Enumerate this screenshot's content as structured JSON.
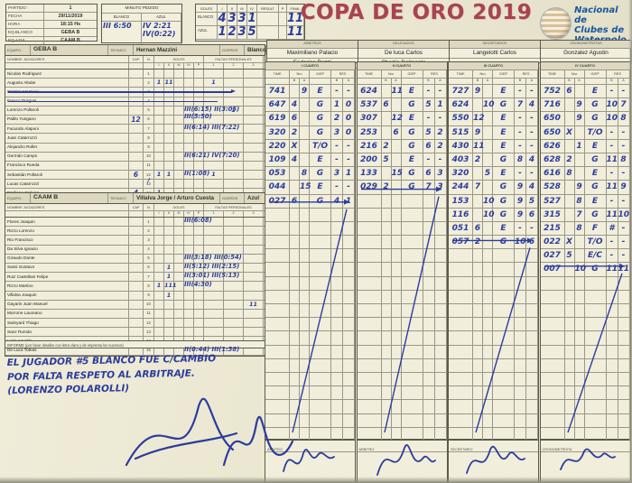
{
  "header": {
    "info": {
      "rows": [
        [
          "PARTIDO :",
          "1"
        ],
        [
          "FECHA",
          "29/11/2019"
        ],
        [
          "HORA",
          "18:15 Hs"
        ],
        [
          "EQ.BLANCO",
          "GEBA B"
        ],
        [
          "EQ.AZUL",
          "CAAM B"
        ]
      ]
    },
    "minuto_pedido": {
      "title": "MINUTO PEDIDO",
      "cols": [
        "BLANCO",
        "AZUL"
      ],
      "blanco_entry": "III 6:50",
      "azul_entry1": "IV 2:21",
      "azul_entry2": "IV(0:22)"
    },
    "goles_box": {
      "title": "GOLES",
      "cols": [
        "I",
        "II",
        "III",
        "IV",
        "RESULT",
        "P",
        "FINAL"
      ],
      "rows": [
        {
          "label": "BLANCO",
          "vals": [
            "4",
            "3",
            "3",
            "1",
            "",
            "",
            "11"
          ]
        },
        {
          "label": "AZUL",
          "vals": [
            "1",
            "2",
            "3",
            "5",
            "",
            "",
            "11"
          ]
        }
      ]
    },
    "title": "COPA DE ORO 2019",
    "logo_lines": [
      "Nacional de",
      "Clubes de",
      "Waterpolo"
    ]
  },
  "officials": [
    {
      "role": "ARBITROS",
      "names": [
        "Maximiliano Palacio",
        "Federico Pozzi"
      ]
    },
    {
      "role": "DELEGADOS",
      "names": [
        "De luca Carlos",
        "Charlie Delmonte"
      ]
    },
    {
      "role": "SECRETARIOS",
      "names": [
        "Langelotti Carlos",
        ""
      ]
    },
    {
      "role": "CRONOMETRISTAS",
      "names": [
        "Gonzalez Agustin",
        ""
      ]
    }
  ],
  "teams_common": {
    "equipo_label": "EQUIPO :",
    "tecnico_label": "TECNICO",
    "gorros_label": "GORROS",
    "name_col": "NOMBRE JUGADORES",
    "cap_col": "CAP",
    "n_col": "N",
    "goles_col": "GOLES",
    "goles_sub": [
      "I",
      "II",
      "III",
      "IV",
      "P"
    ],
    "faltas_col": "FALTAS PERSONALES",
    "faltas_sub": [
      "1",
      "2",
      "3"
    ]
  },
  "team_white": {
    "equipo": "GEBA B",
    "tecnico": "Hernan Mazzini",
    "gorros": "Blanco",
    "players": [
      {
        "n": "1",
        "name": "Nicolas Rodriguez"
      },
      {
        "n": "2",
        "name": "Augusto Altube",
        "g": [
          "1",
          "11",
          "",
          "",
          ""
        ],
        "f": [
          "1",
          "",
          ""
        ]
      },
      {
        "n": "3",
        "name": "Cristian Mazzoni",
        "crossed": "arrow"
      },
      {
        "n": "4",
        "name": "Franco Dragoni",
        "crossed": "plain"
      },
      {
        "n": "5",
        "name": "Lorenzo Pollaroli",
        "f": [
          "",
          "1",
          ""
        ],
        "anno": "III(6:15) II(3:05) III(5:50)"
      },
      {
        "n": "6",
        "name": "Pablo Yungano",
        "cap": "12"
      },
      {
        "n": "7",
        "name": "Facundo Alaponi",
        "anno": "II(6:14) III(7:22)"
      },
      {
        "n": "8",
        "name": "Juan Catarrozzi"
      },
      {
        "n": "9",
        "name": "Alejandro Roller"
      },
      {
        "n": "10",
        "name": "Germán Camps",
        "anno": "II(6:21) IV(7:20)"
      },
      {
        "n": "11",
        "name": "Francisco Rueda"
      },
      {
        "n": "12",
        "name": "Sebastián Pollaroli",
        "cap": "6",
        "nm": "/",
        "g": [
          "1",
          "1",
          "",
          "",
          ""
        ],
        "f": [
          "1",
          "",
          ""
        ],
        "anno": "II(1:08)"
      },
      {
        "n": "13",
        "name": "Lucas Catarrozzi"
      },
      {
        "n": "14",
        "name": "Emiliano Stelung",
        "cap": "4",
        "nm": "/",
        "g": [
          "1",
          "",
          "",
          "",
          ""
        ]
      },
      {
        "n": "15",
        "name": "Facundo Scime",
        "cap": "3",
        "nm": "/"
      }
    ]
  },
  "team_blue": {
    "equipo": "CAAM B",
    "tecnico": "Villalva Jorge / Arturo Cuesta",
    "gorros": "Azul",
    "players": [
      {
        "n": "1",
        "name": "Flores Joaquin",
        "anno": "III(6:08)"
      },
      {
        "n": "2",
        "name": "Rizzo Lorenzo"
      },
      {
        "n": "3",
        "name": "Rio Francisco"
      },
      {
        "n": "4",
        "name": "Da Silva Ignacio"
      },
      {
        "n": "5",
        "name": "Giraudo Dante",
        "anno": "III(3:18) III(0:54)"
      },
      {
        "n": "6",
        "name": "Sassi Gustavo",
        "g": [
          "",
          "1",
          "",
          "",
          ""
        ],
        "anno": "II(5:12) III(2:15)"
      },
      {
        "n": "7",
        "name": "Ruiz Castellani Felipe",
        "g": [
          "",
          "1",
          "",
          "",
          ""
        ],
        "anno": "II(3:01) III(5:13)"
      },
      {
        "n": "8",
        "name": "Rizzo Martino",
        "g": [
          "1",
          "111",
          "",
          "",
          ""
        ],
        "anno": "III(4:30)"
      },
      {
        "n": "9",
        "name": "Villalva Joaquin",
        "g": [
          "",
          "1",
          "",
          "",
          ""
        ]
      },
      {
        "n": "10",
        "name": "Gayarin Juan Manuel",
        "f": [
          "",
          "",
          "11"
        ]
      },
      {
        "n": "11",
        "name": "Morrone Laureano"
      },
      {
        "n": "12",
        "name": "Swinyard Thiago"
      },
      {
        "n": "13",
        "name": "Sanz Román"
      },
      {
        "n": "14",
        "name": "Loria Agustín"
      },
      {
        "n": "15",
        "name": "De Luca Tobías",
        "anno": "II(0:44) III(1:38)"
      }
    ]
  },
  "quarters": {
    "col_time": "TIME",
    "col_nro": "Nro",
    "col_gep": "G/EP",
    "col_res": "RES",
    "sub_b": "B",
    "sub_a": "A",
    "list": [
      {
        "label": "I CUARTO",
        "rows": [
          [
            "741",
            "",
            "9",
            "E",
            "-",
            "-"
          ],
          [
            "647",
            "4",
            "",
            "G",
            "1",
            "0"
          ],
          [
            "619",
            "6",
            "",
            "G",
            "2",
            "0"
          ],
          [
            "320",
            "2",
            "",
            "G",
            "3",
            "0"
          ],
          [
            "220",
            "X",
            "",
            "T/O",
            "-",
            "-"
          ],
          [
            "109",
            "4",
            "",
            "E",
            "-",
            "-"
          ],
          [
            "053",
            "",
            "8",
            "G",
            "3",
            "1"
          ],
          [
            "044",
            "",
            "15",
            "E",
            "-",
            "-"
          ],
          [
            "027",
            "6",
            "",
            "G",
            "4",
            "1"
          ]
        ]
      },
      {
        "label": "II CUARTO",
        "rows": [
          [
            "624",
            "",
            "11",
            "E",
            "-",
            "-"
          ],
          [
            "537",
            "6",
            "",
            "G",
            "5",
            "1"
          ],
          [
            "307",
            "",
            "12",
            "E",
            "-",
            "-"
          ],
          [
            "253",
            "",
            "6",
            "G",
            "5",
            "2"
          ],
          [
            "216",
            "2",
            "",
            "G",
            "6",
            "2"
          ],
          [
            "200",
            "5",
            "",
            "E",
            "-",
            "-"
          ],
          [
            "133",
            "",
            "15",
            "G",
            "6",
            "3"
          ],
          [
            "029",
            "2",
            "",
            "G",
            "7",
            "3"
          ]
        ]
      },
      {
        "label": "III CUARTO",
        "rows": [
          [
            "727",
            "9",
            "",
            "E",
            "-",
            "-"
          ],
          [
            "624",
            "",
            "10",
            "G",
            "7",
            "4"
          ],
          [
            "550",
            "12",
            "",
            "E",
            "-",
            "-"
          ],
          [
            "515",
            "9",
            "",
            "E",
            "-",
            "-"
          ],
          [
            "430",
            "11",
            "",
            "E",
            "-",
            "-"
          ],
          [
            "403",
            "2",
            "",
            "G",
            "8",
            "4"
          ],
          [
            "320",
            "",
            "5",
            "E",
            "-",
            "-"
          ],
          [
            "244",
            "7",
            "",
            "G",
            "9",
            "4"
          ],
          [
            "153",
            "",
            "10",
            "G",
            "9",
            "5"
          ],
          [
            "116",
            "",
            "10",
            "G",
            "9",
            "6"
          ],
          [
            "051",
            "6",
            "",
            "E",
            "-",
            "-"
          ],
          [
            "057",
            "2",
            "",
            "G",
            "10",
            "6"
          ]
        ]
      },
      {
        "label": "IV CUARTO",
        "rows": [
          [
            "752",
            "6",
            "",
            "E",
            "-",
            "-"
          ],
          [
            "716",
            "",
            "9",
            "G",
            "10",
            "7"
          ],
          [
            "650",
            "",
            "9",
            "G",
            "10",
            "8"
          ],
          [
            "650",
            "X",
            "",
            "T/O",
            "-",
            "-"
          ],
          [
            "626",
            "",
            "1",
            "E",
            "-",
            "-"
          ],
          [
            "628",
            "2",
            "",
            "G",
            "11",
            "8"
          ],
          [
            "616",
            "8",
            "",
            "E",
            "-",
            "-"
          ],
          [
            "528",
            "",
            "9",
            "G",
            "11",
            "9"
          ],
          [
            "527",
            "",
            "8",
            "E",
            "-",
            "-"
          ],
          [
            "315",
            "",
            "7",
            "G",
            "11",
            "10"
          ],
          [
            "215",
            "",
            "8",
            "F",
            "#",
            "-"
          ],
          [
            "022",
            "X",
            "",
            "T/O",
            "-",
            "-"
          ],
          [
            "027",
            "5",
            "",
            "E/C",
            "-",
            "-"
          ],
          [
            "007",
            "",
            "10",
            "G",
            "11",
            "11"
          ]
        ]
      }
    ]
  },
  "informe": {
    "label": "INFORME (por favor detallar con letra clara y de imprenta los sucesos)",
    "lines": [
      "EL JUGADOR #5 BLANCO FUE C/CAMBIO",
      "POR FALTA RESPETO AL ARBITRAJE.",
      "(LORENZO POLAROLLI)"
    ]
  },
  "footer": {
    "roles": [
      "ARBITRO",
      "ARBITRO",
      "SECRETARIO",
      "CRONOMETRISTA"
    ]
  },
  "colors": {
    "ink": "#2c3c9c",
    "title_red": "#a84450",
    "logo_blue": "#17569e"
  }
}
